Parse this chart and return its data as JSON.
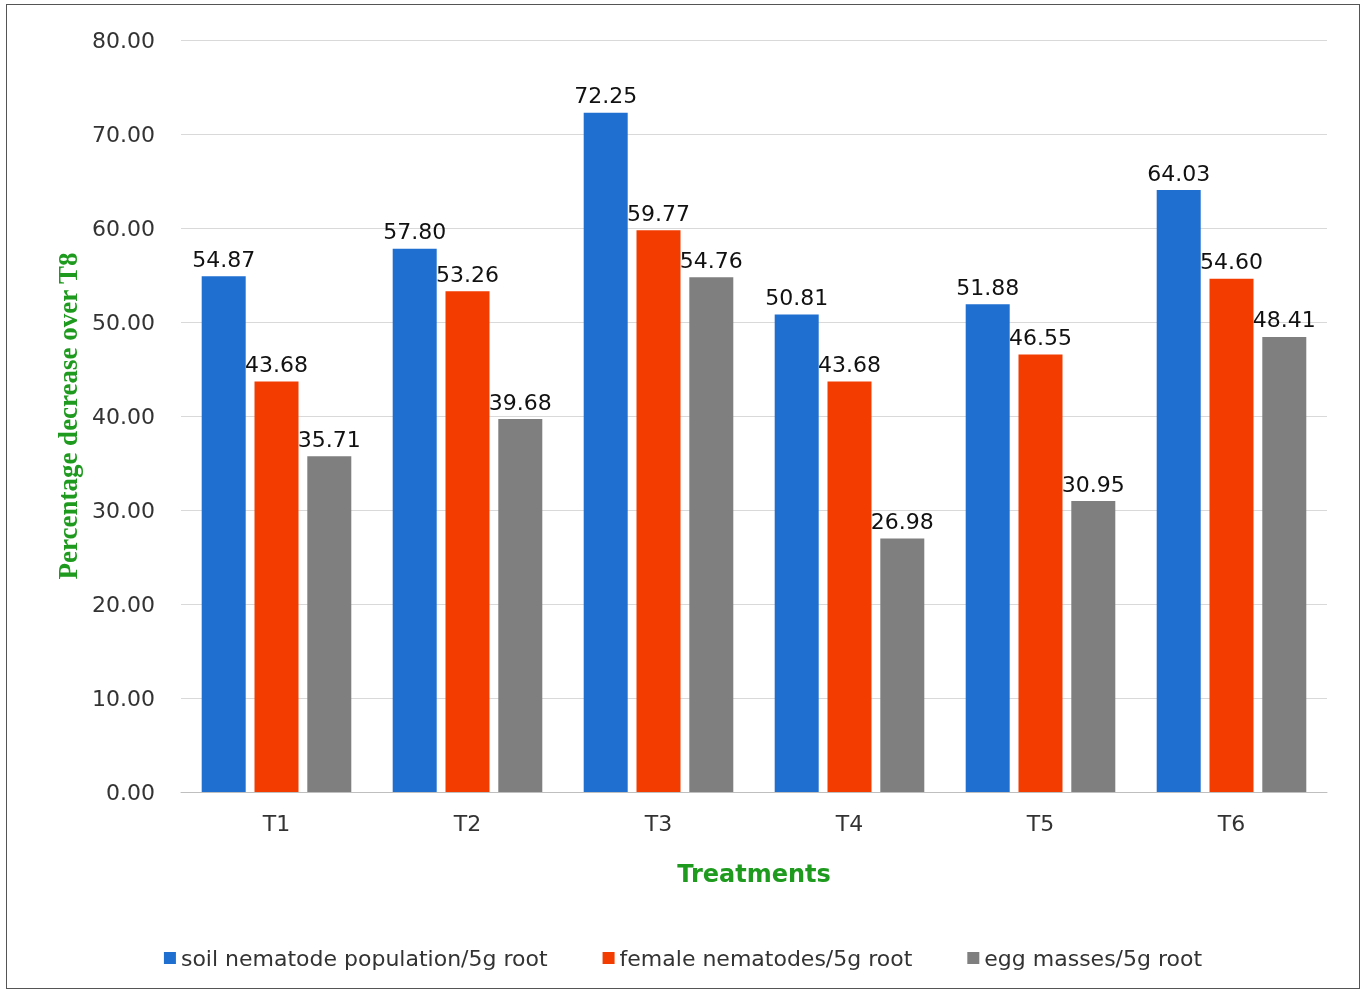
{
  "chart_data": {
    "type": "bar",
    "ylabel": "Percentage decrease over T8",
    "xlabel": "Treatments",
    "categories": [
      "T1",
      "T2",
      "T3",
      "T4",
      "T5",
      "T6"
    ],
    "series": [
      {
        "name": "soil nematode population/5g root",
        "color": "#1f6fd0",
        "values": [
          54.87,
          57.8,
          72.25,
          50.81,
          51.88,
          64.03
        ],
        "value_labels": [
          "54.87",
          "57.80",
          "72.25",
          "50.81",
          "51.88",
          "64.03"
        ]
      },
      {
        "name": "female nematodes/5g root",
        "color": "#f23c00",
        "values": [
          43.68,
          53.26,
          59.77,
          43.68,
          46.55,
          54.6
        ],
        "value_labels": [
          "43.68",
          "53.26",
          "59.77",
          "43.68",
          "46.55",
          "54.60"
        ]
      },
      {
        "name": "egg masses/5g root",
        "color": "#7f7f7f",
        "values": [
          35.71,
          39.68,
          54.76,
          26.98,
          30.95,
          48.41
        ],
        "value_labels": [
          "35.71",
          "39.68",
          "54.76",
          "26.98",
          "30.95",
          "48.41"
        ]
      }
    ],
    "ylim": [
      0,
      80
    ],
    "yticks": [
      {
        "value": 0,
        "label": "0.00"
      },
      {
        "value": 10,
        "label": "10.00"
      },
      {
        "value": 20,
        "label": "20.00"
      },
      {
        "value": 30,
        "label": "30.00"
      },
      {
        "value": 40,
        "label": "40.00"
      },
      {
        "value": 50,
        "label": "50.00"
      },
      {
        "value": 60,
        "label": "60.00"
      },
      {
        "value": 70,
        "label": "70.00"
      },
      {
        "value": 80,
        "label": "80.00"
      }
    ],
    "grid": "y",
    "legend": "bottom"
  }
}
